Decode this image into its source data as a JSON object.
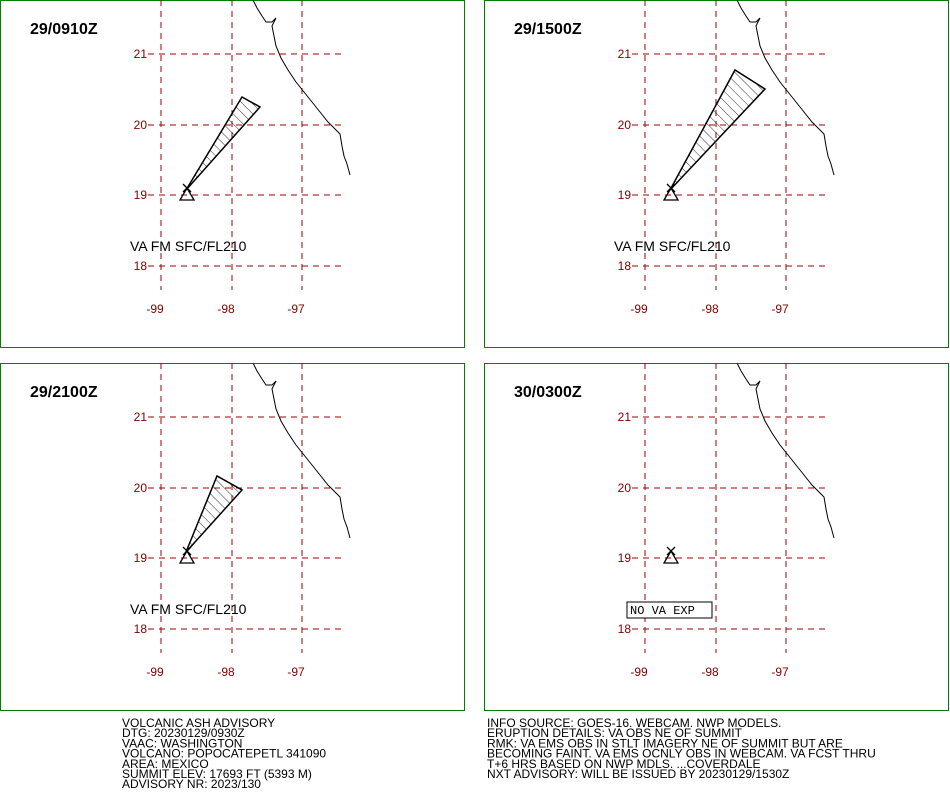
{
  "panels": [
    {
      "title": "29/0910Z",
      "label": "VA FM SFC/FL210"
    },
    {
      "title": "29/1500Z",
      "label": "VA FM SFC/FL210"
    },
    {
      "title": "29/2100Z",
      "label": "VA FM SFC/FL210"
    },
    {
      "title": "30/0300Z",
      "label": "NO VA EXP"
    }
  ],
  "grid": {
    "lat": [
      "21",
      "20",
      "19",
      "18"
    ],
    "lon": [
      "-99",
      "-98",
      "-97"
    ]
  },
  "advisory": {
    "left": [
      "VOLCANIC ASH ADVISORY",
      "DTG: 20230129/0930Z",
      "VAAC: WASHINGTON",
      "VOLCANO: POPOCATEPETL 341090",
      "AREA: MEXICO",
      "SUMMIT ELEV: 17693 FT (5393 M)",
      "ADVISORY NR: 2023/130"
    ],
    "right": [
      "INFO SOURCE: GOES-16. WEBCAM. NWP MODELS.",
      "ERUPTION DETAILS: VA OBS NE OF SUMMIT",
      "RMK: VA EMS OBS IN STLT IMAGERY NE OF SUMMIT BUT ARE",
      "BECOMING FAINT. VA EMS OCNLY OBS IN WEBCAM. VA FCST THRU",
      "T+6 HRS BASED ON NWP MDLS. ...COVERDALE",
      "NXT ADVISORY: WILL BE ISSUED BY 20230129/1530Z"
    ]
  }
}
